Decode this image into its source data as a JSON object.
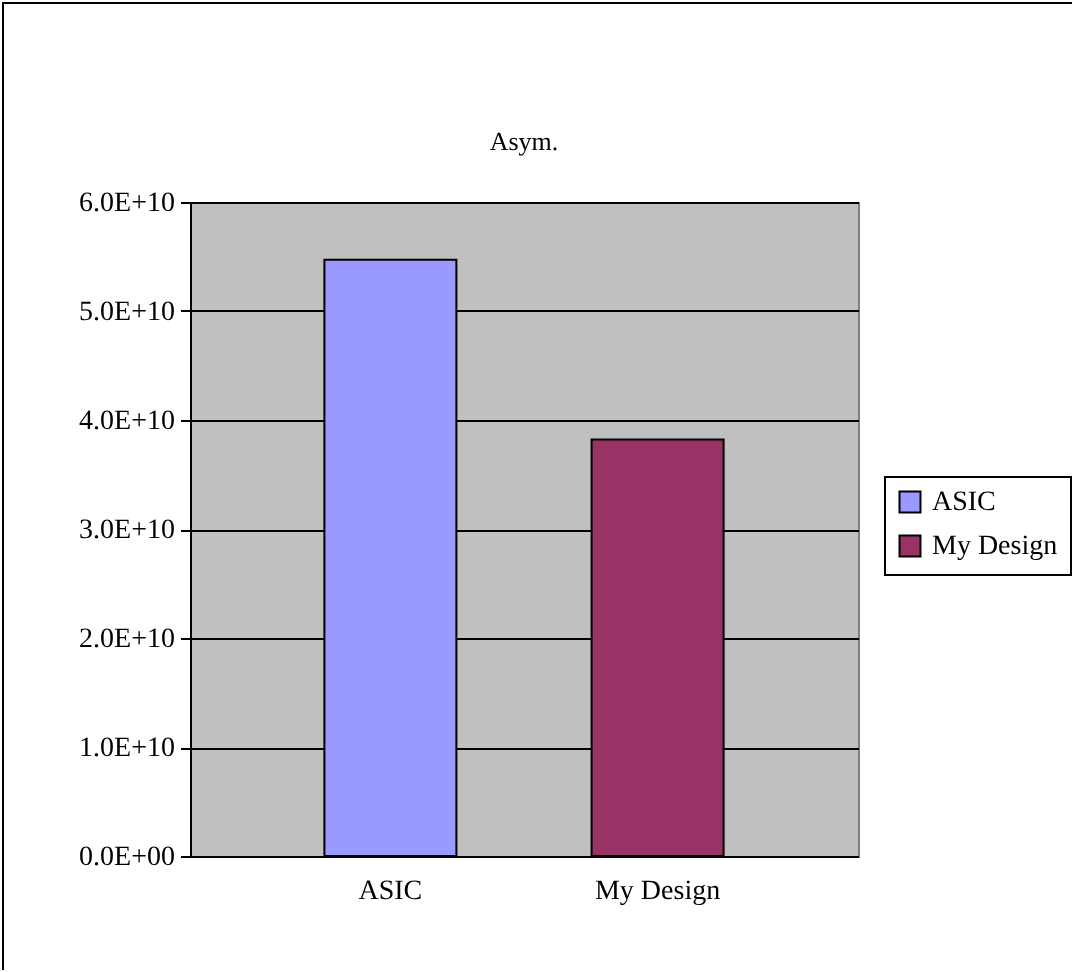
{
  "chart_data": {
    "type": "bar",
    "title": "Asym.",
    "categories": [
      "ASIC",
      "My Design"
    ],
    "series": [
      {
        "name": "ASIC",
        "color": "#9999ff",
        "values": [
          54700000000,
          null
        ]
      },
      {
        "name": "My Design",
        "color": "#993366",
        "values": [
          null,
          38200000000
        ]
      }
    ],
    "ylim": [
      0,
      60000000000
    ],
    "yticks": [
      {
        "value": 0,
        "label": "0.0E+00"
      },
      {
        "value": 10000000000,
        "label": "1.0E+10"
      },
      {
        "value": 20000000000,
        "label": "2.0E+10"
      },
      {
        "value": 30000000000,
        "label": "3.0E+10"
      },
      {
        "value": 40000000000,
        "label": "4.0E+10"
      },
      {
        "value": 50000000000,
        "label": "5.0E+10"
      },
      {
        "value": 60000000000,
        "label": "6.0E+10"
      }
    ],
    "grid": "y",
    "legend": "right"
  }
}
